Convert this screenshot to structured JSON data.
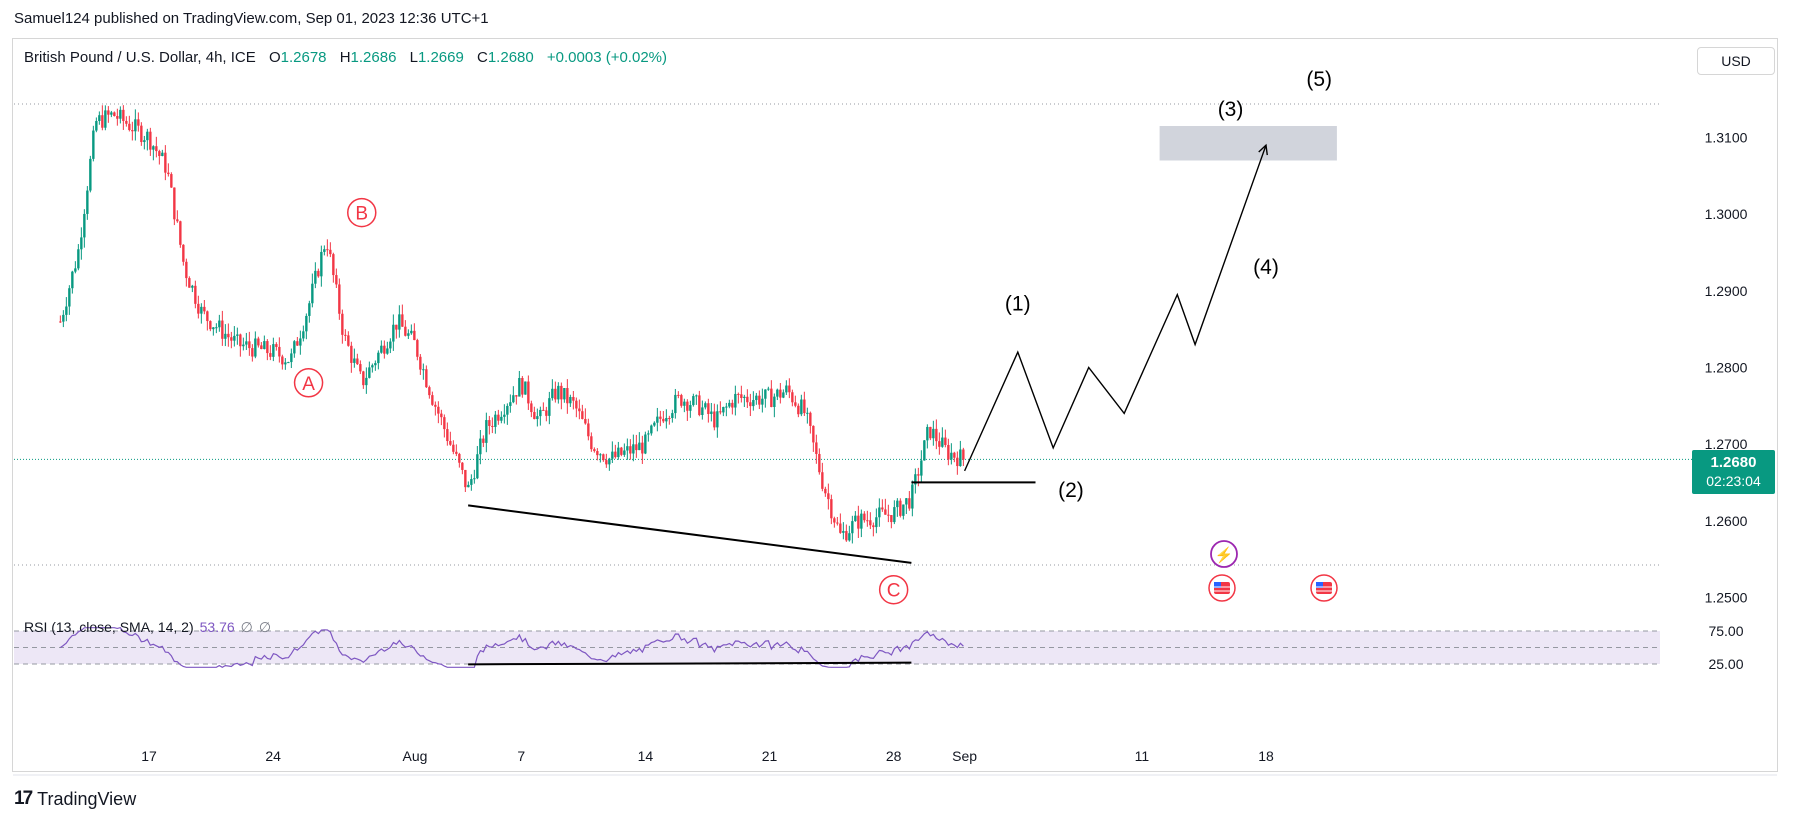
{
  "header": {
    "publish_text": "Samuel124 published on TradingView.com, Sep 01, 2023 12:36 UTC+1",
    "symbol": "British Pound / U.S. Dollar, 4h, ICE",
    "open_label": "O",
    "open": "1.2678",
    "high_label": "H",
    "high": "1.2686",
    "low_label": "L",
    "low": "1.2669",
    "close_label": "C",
    "close": "1.2680",
    "change": "+0.0003 (+0.02%)"
  },
  "currency_button": "USD",
  "rsi_legend": {
    "name": "RSI (13, close, SMA, 14, 2)",
    "value": "53.76",
    "na1": "∅",
    "na2": "∅"
  },
  "last_price": {
    "price": "1.2680",
    "countdown": "02:23:04"
  },
  "footer": {
    "logo_mark": "17",
    "logo_text": "TradingView"
  },
  "colors": {
    "up": "#089981",
    "down": "#f23645",
    "rsi": "#7e57c2",
    "rsi_band": "#ede7f6"
  },
  "chart_data": [
    {
      "type": "candlestick",
      "title": "British Pound / U.S. Dollar, 4h, ICE",
      "currency": "USD",
      "ylim": [
        1.2465,
        1.316
      ],
      "y_ticks": [
        "1.3100",
        "1.3000",
        "1.2900",
        "1.2800",
        "1.2700",
        "1.2600",
        "1.2500"
      ],
      "x_ticks": [
        "17",
        "24",
        "Aug",
        "7",
        "14",
        "21",
        "28",
        "Sep",
        "11",
        "18"
      ],
      "close_path": [
        [
          "Jul 12",
          1.286
        ],
        [
          "Jul 13",
          1.295
        ],
        [
          "Jul 14",
          1.312
        ],
        [
          "Jul 15",
          1.313
        ],
        [
          "Jul 17",
          1.31
        ],
        [
          "Jul 18",
          1.306
        ],
        [
          "Jul 19",
          1.293
        ],
        [
          "Jul 20",
          1.287
        ],
        [
          "Jul 21",
          1.285
        ],
        [
          "Jul 22",
          1.283
        ],
        [
          "Jul 24",
          1.282
        ],
        [
          "Jul 25",
          1.281
        ],
        [
          "Jul 26",
          1.288
        ],
        [
          "Jul 27",
          1.297
        ],
        [
          "Jul 28",
          1.284
        ],
        [
          "Jul 29",
          1.278
        ],
        [
          "Jul 31",
          1.286
        ],
        [
          "Aug 1",
          1.283
        ],
        [
          "Aug 2",
          1.276
        ],
        [
          "Aug 3",
          1.27
        ],
        [
          "Aug 4",
          1.264
        ],
        [
          "Aug 5",
          1.272
        ],
        [
          "Aug 7",
          1.278
        ],
        [
          "Aug 8",
          1.273
        ],
        [
          "Aug 9",
          1.277
        ],
        [
          "Aug 10",
          1.275
        ],
        [
          "Aug 11",
          1.27
        ],
        [
          "Aug 12",
          1.268
        ],
        [
          "Aug 14",
          1.27
        ],
        [
          "Aug 15",
          1.274
        ],
        [
          "Aug 16",
          1.276
        ],
        [
          "Aug 17",
          1.275
        ],
        [
          "Aug 18",
          1.273
        ],
        [
          "Aug 19",
          1.276
        ],
        [
          "Aug 21",
          1.276
        ],
        [
          "Aug 22",
          1.277
        ],
        [
          "Aug 23",
          1.274
        ],
        [
          "Aug 24",
          1.265
        ],
        [
          "Aug 25",
          1.258
        ],
        [
          "Aug 26",
          1.26
        ],
        [
          "Aug 28",
          1.261
        ],
        [
          "Aug 29",
          1.263
        ],
        [
          "Aug 30",
          1.272
        ],
        [
          "Aug 31",
          1.269
        ],
        [
          "Sep 1",
          1.268
        ]
      ],
      "current_price": 1.268,
      "annotations": {
        "wave_labels": [
          "A",
          "B",
          "C"
        ],
        "projection_labels": [
          "(1)",
          "(2)",
          "(3)",
          "(4)",
          "(5)"
        ],
        "projection_path": [
          [
            "Sep 1",
            1.2665
          ],
          [
            "Sep 4",
            1.282
          ],
          [
            "Sep 6",
            1.2695
          ],
          [
            "Sep 8",
            1.28
          ],
          [
            "Sep 10",
            1.274
          ],
          [
            "Sep 13",
            1.2895
          ],
          [
            "Sep 14",
            1.283
          ],
          [
            "Sep 18",
            1.309
          ]
        ],
        "target_zone": [
          1.307,
          1.3115
        ],
        "support_line_price": 1.265,
        "trendline": [
          [
            "Aug 4",
            1.262
          ],
          [
            "Aug 29",
            1.2545
          ]
        ]
      }
    },
    {
      "type": "line",
      "title": "RSI (13, close, SMA, 14, 2)",
      "ylim": [
        25,
        75
      ],
      "y_ticks": [
        "75.00",
        "25.00"
      ],
      "band": [
        25,
        75
      ],
      "middle": 50,
      "last_value": 53.76,
      "trendline": [
        [
          "Aug 4",
          24.5
        ],
        [
          "Aug 29",
          27.0
        ]
      ]
    }
  ]
}
